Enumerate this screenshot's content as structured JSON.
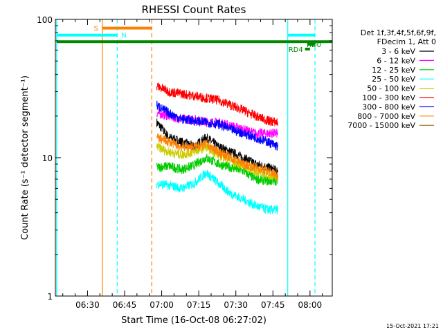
{
  "chart_data": {
    "type": "line",
    "title": "RHESSI Count Rates",
    "xlabel": "Start Time (16-Oct-08 06:27:02)",
    "ylabel": "Count Rate (s⁻¹ detector segment⁻¹)",
    "ylog": true,
    "ylim": [
      1,
      100
    ],
    "xlim_minutes": [
      377,
      489
    ],
    "x_ticks": [
      {
        "label": "06:30",
        "minutes": 390
      },
      {
        "label": "06:45",
        "minutes": 405
      },
      {
        "label": "07:00",
        "minutes": 420
      },
      {
        "label": "07:15",
        "minutes": 435
      },
      {
        "label": "07:30",
        "minutes": 450
      },
      {
        "label": "07:45",
        "minutes": 465
      },
      {
        "label": "08:00",
        "minutes": 480
      }
    ],
    "y_ticks": [
      {
        "label": "1",
        "value": 1
      },
      {
        "label": "10",
        "value": 10
      },
      {
        "label": "100",
        "value": 100
      }
    ],
    "legend": {
      "header": [
        "Det 1f,3f,4f,5f,6f,9f,",
        "FDecim 1, Att 0"
      ],
      "placement": "right"
    },
    "series": [
      {
        "name": "3 - 6 keV",
        "color": "#000000",
        "x": [
          418,
          423,
          428,
          433,
          438,
          443,
          448,
          453,
          458,
          463,
          467
        ],
        "values": [
          18,
          14,
          13,
          12,
          14,
          12,
          11,
          10,
          9,
          8.5,
          8
        ]
      },
      {
        "name": "6 - 12 keV",
        "color": "#ff00ff",
        "x": [
          418,
          423,
          428,
          433,
          438,
          443,
          448,
          453,
          458,
          463,
          467
        ],
        "values": [
          21,
          20,
          19,
          19,
          18,
          18,
          17,
          16,
          15,
          15,
          15
        ]
      },
      {
        "name": "12 - 25 keV",
        "color": "#00cc00",
        "x": [
          418,
          423,
          428,
          433,
          438,
          443,
          448,
          453,
          458,
          463,
          467
        ],
        "values": [
          8.5,
          8.7,
          8.2,
          8.8,
          10,
          9,
          8.5,
          8,
          7,
          6.8,
          6.8
        ]
      },
      {
        "name": "25 - 50 keV",
        "color": "#00ffff",
        "x": [
          418,
          423,
          428,
          433,
          438,
          443,
          448,
          453,
          458,
          463,
          467
        ],
        "values": [
          6.5,
          6.3,
          6,
          6.5,
          7.8,
          6.5,
          5.5,
          5,
          4.5,
          4.2,
          4.2
        ]
      },
      {
        "name": "50 - 100 keV",
        "color": "#cccc00",
        "x": [
          418,
          423,
          428,
          433,
          438,
          443,
          448,
          453,
          458,
          463,
          467
        ],
        "values": [
          12,
          11,
          10.5,
          11,
          12,
          10.5,
          9.5,
          8.8,
          8,
          7.5,
          7.2
        ]
      },
      {
        "name": "100 - 300 keV",
        "color": "#ff0000",
        "x": [
          418,
          423,
          428,
          433,
          438,
          443,
          448,
          453,
          458,
          463,
          467
        ],
        "values": [
          33,
          30,
          29,
          28,
          27,
          26,
          24,
          22,
          20,
          18.5,
          18
        ]
      },
      {
        "name": "300 - 800 keV",
        "color": "#0000ff",
        "x": [
          418,
          423,
          428,
          433,
          438,
          443,
          448,
          453,
          458,
          463,
          467
        ],
        "values": [
          24,
          21,
          19,
          18.5,
          18,
          17.5,
          16,
          15,
          14,
          13,
          12
        ]
      },
      {
        "name": "800 - 7000 keV",
        "color": "#ff8000",
        "x": [
          418,
          423,
          428,
          433,
          438,
          443,
          448,
          453,
          458,
          463,
          467
        ],
        "values": [
          14,
          13,
          12,
          12,
          12.5,
          11,
          10,
          9,
          8.5,
          8,
          7.5
        ]
      },
      {
        "name": "7000 - 15000 keV",
        "color": "#996600",
        "x": [],
        "values": []
      }
    ],
    "vertical_markers": [
      {
        "minutes": 377.5,
        "color": "#00ffff",
        "style": "solid"
      },
      {
        "minutes": 396,
        "color": "#ff8000",
        "style": "solid"
      },
      {
        "minutes": 402,
        "color": "#00ffff",
        "style": "dashed"
      },
      {
        "minutes": 416,
        "color": "#ff8000",
        "style": "dashed"
      },
      {
        "minutes": 471,
        "color": "#00ffff",
        "style": "solid"
      },
      {
        "minutes": 482,
        "color": "#00ffff",
        "style": "dashed"
      }
    ],
    "interval_bars": [
      {
        "label": "S",
        "color": "#ff8000",
        "start": 396,
        "end": 416,
        "y": 86.5
      },
      {
        "label": "N",
        "color": "#00ffff",
        "start": 377.5,
        "end": 402,
        "y": 77
      },
      {
        "label": "",
        "color": "#00ffff",
        "start": 471,
        "end": 482,
        "y": 77
      },
      {
        "label": "",
        "color": "#008800",
        "start": 377.5,
        "end": 489,
        "y": 69
      },
      {
        "label": "RD0",
        "color": "#008800",
        "start": 479,
        "end": 482,
        "y": 66
      },
      {
        "label": "RD4",
        "color": "#008800",
        "start": 478,
        "end": 480,
        "y": 61
      }
    ]
  },
  "footer_timestamp": "15-Oct-2021 17:21"
}
